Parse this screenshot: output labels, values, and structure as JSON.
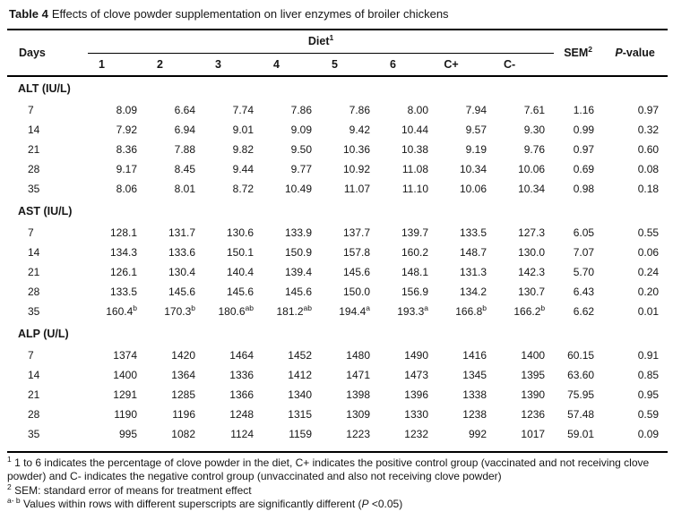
{
  "title": {
    "label": "Table 4",
    "text": "Effects of clove powder supplementation on liver enzymes of broiler chickens"
  },
  "table": {
    "days_header": "Days",
    "diet_group_header": "Diet",
    "diet_group_sup": "1",
    "diet_cols": [
      "1",
      "2",
      "3",
      "4",
      "5",
      "6",
      "C+",
      "C-"
    ],
    "sem_header": "SEM",
    "sem_sup": "2",
    "pvalue_header_italic": "P",
    "pvalue_header_rest": "-value",
    "sections": [
      {
        "label": "ALT (IU/L)",
        "rows": [
          {
            "day": "7",
            "values": [
              "8.09",
              "6.64",
              "7.74",
              "7.86",
              "7.86",
              "8.00",
              "7.94",
              "7.61"
            ],
            "sem": "1.16",
            "p": "0.97"
          },
          {
            "day": "14",
            "values": [
              "7.92",
              "6.94",
              "9.01",
              "9.09",
              "9.42",
              "10.44",
              "9.57",
              "9.30"
            ],
            "sem": "0.99",
            "p": "0.32"
          },
          {
            "day": "21",
            "values": [
              "8.36",
              "7.88",
              "9.82",
              "9.50",
              "10.36",
              "10.38",
              "9.19",
              "9.76"
            ],
            "sem": "0.97",
            "p": "0.60"
          },
          {
            "day": "28",
            "values": [
              "9.17",
              "8.45",
              "9.44",
              "9.77",
              "10.92",
              "11.08",
              "10.34",
              "10.06"
            ],
            "sem": "0.69",
            "p": "0.08"
          },
          {
            "day": "35",
            "values": [
              "8.06",
              "8.01",
              "8.72",
              "10.49",
              "11.07",
              "11.10",
              "10.06",
              "10.34"
            ],
            "sem": "0.98",
            "p": "0.18"
          }
        ]
      },
      {
        "label": "AST (IU/L)",
        "rows": [
          {
            "day": "7",
            "values": [
              "128.1",
              "131.7",
              "130.6",
              "133.9",
              "137.7",
              "139.7",
              "133.5",
              "127.3"
            ],
            "sem": "6.05",
            "p": "0.55"
          },
          {
            "day": "14",
            "values": [
              "134.3",
              "133.6",
              "150.1",
              "150.9",
              "157.8",
              "160.2",
              "148.7",
              "130.0"
            ],
            "sem": "7.07",
            "p": "0.06"
          },
          {
            "day": "21",
            "values": [
              "126.1",
              "130.4",
              "140.4",
              "139.4",
              "145.6",
              "148.1",
              "131.3",
              "142.3"
            ],
            "sem": "5.70",
            "p": "0.24"
          },
          {
            "day": "28",
            "values": [
              "133.5",
              "145.6",
              "145.6",
              "145.6",
              "150.0",
              "156.9",
              "134.2",
              "130.7"
            ],
            "sem": "6.43",
            "p": "0.20"
          },
          {
            "day": "35",
            "values": [
              "160.4^b",
              "170.3^b",
              "180.6^ab",
              "181.2^ab",
              "194.4^a",
              "193.3^a",
              "166.8^b",
              "166.2^b"
            ],
            "sem": "6.62",
            "p": "0.01"
          }
        ]
      },
      {
        "label": "ALP (U/L)",
        "rows": [
          {
            "day": "7",
            "values": [
              "1374",
              "1420",
              "1464",
              "1452",
              "1480",
              "1490",
              "1416",
              "1400"
            ],
            "sem": "60.15",
            "p": "0.91"
          },
          {
            "day": "14",
            "values": [
              "1400",
              "1364",
              "1336",
              "1412",
              "1471",
              "1473",
              "1345",
              "1395"
            ],
            "sem": "63.60",
            "p": "0.85"
          },
          {
            "day": "21",
            "values": [
              "1291",
              "1285",
              "1366",
              "1340",
              "1398",
              "1396",
              "1338",
              "1390"
            ],
            "sem": "75.95",
            "p": "0.95"
          },
          {
            "day": "28",
            "values": [
              "1190",
              "1196",
              "1248",
              "1315",
              "1309",
              "1330",
              "1238",
              "1236"
            ],
            "sem": "57.48",
            "p": "0.59"
          },
          {
            "day": "35",
            "values": [
              "995",
              "1082",
              "1124",
              "1159",
              "1223",
              "1232",
              "992",
              "1017"
            ],
            "sem": "59.01",
            "p": "0.09"
          }
        ]
      }
    ]
  },
  "footnotes": [
    {
      "sup": "1",
      "text": "1 to 6 indicates the percentage of clove powder in the diet, C+ indicates the positive control group (vaccinated and not receiving clove powder) and C- indicates the negative control group (unvaccinated and also not receiving clove powder)"
    },
    {
      "sup": "2",
      "text": "SEM: standard error of means for treatment effect"
    },
    {
      "sup": "a- b",
      "pre": "Values within rows with different superscripts are significantly different (",
      "italic": "P",
      "post": " <0.05)"
    }
  ]
}
